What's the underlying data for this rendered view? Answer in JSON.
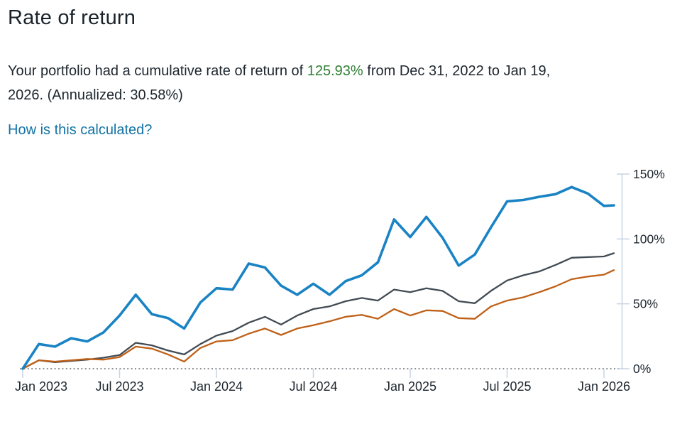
{
  "page": {
    "title": "Rate of return",
    "summary": {
      "before": "Your portfolio had a cumulative rate of return of ",
      "highlight": "125.93%",
      "after": " from Dec 31, 2022 to Jan 19, 2026. (Annualized: 30.58%)"
    },
    "annualized_return": "30.58%",
    "cumulative_return": "125.93%",
    "date_range": {
      "start": "Dec 31, 2022",
      "end": "Jan 19, 2026"
    },
    "link": "How is this calculated?"
  },
  "colors": {
    "portfolio_line": "#1a83c4",
    "comparison_gray": "#424b54",
    "comparison_orange": "#bf6017",
    "highlight_green": "#2f7e33",
    "link_blue": "#1373a5",
    "axis": "#c7d4e2",
    "zero_line": "#8d9298",
    "text": "#1d262e"
  },
  "chart_data": {
    "type": "line",
    "title": "",
    "legend": "none",
    "grid": "off",
    "zero_baseline_dotted": true,
    "x_axis": {
      "tick_labels": [
        "Jan 2023",
        "Jul 2023",
        "Jan 2024",
        "Jul 2024",
        "Jan 2025",
        "Jul 2025",
        "Jan 2026"
      ]
    },
    "y_axis": {
      "side": "right",
      "unit": "%",
      "range_pct": [
        0,
        150
      ],
      "ticks_pct": [
        0,
        50,
        100,
        150
      ],
      "tick_labels": [
        "0%",
        "50%",
        "100%",
        "150%"
      ]
    },
    "x_months": [
      "2022-12-31",
      "2023-01",
      "2023-02",
      "2023-03",
      "2023-04",
      "2023-05",
      "2023-06",
      "2023-07",
      "2023-08",
      "2023-09",
      "2023-10",
      "2023-11",
      "2023-12",
      "2024-01",
      "2024-02",
      "2024-03",
      "2024-04",
      "2024-05",
      "2024-06",
      "2024-07",
      "2024-08",
      "2024-09",
      "2024-10",
      "2024-11",
      "2024-12",
      "2025-01",
      "2025-02",
      "2025-03",
      "2025-04",
      "2025-05",
      "2025-06",
      "2025-07",
      "2025-08",
      "2025-09",
      "2025-10",
      "2025-11",
      "2025-12",
      "2026-01-19"
    ],
    "series": [
      {
        "id": "portfolio",
        "label_visible": false,
        "color_key": "portfolio_line",
        "values_pct": [
          0,
          19,
          17,
          23.5,
          21,
          28,
          41,
          57,
          42,
          39,
          31,
          51,
          62,
          61,
          81,
          78,
          64,
          57,
          65.5,
          57,
          67.5,
          72,
          82,
          115,
          101.5,
          117,
          101,
          79.5,
          88,
          109,
          129,
          130,
          132.5,
          134.5,
          140,
          135,
          125.5,
          125.93
        ]
      },
      {
        "id": "comparison-gray",
        "label_visible": false,
        "color_key": "comparison_gray",
        "values_pct": [
          0,
          6.5,
          5,
          6,
          7,
          8.5,
          10.5,
          20,
          18,
          14,
          11,
          19,
          25.5,
          29,
          35.5,
          40,
          34,
          41,
          46,
          48,
          52,
          54.5,
          52.5,
          61,
          59,
          62,
          60,
          52,
          50.5,
          60,
          68,
          72,
          75,
          80,
          85.5,
          86,
          86.5,
          89
        ]
      },
      {
        "id": "comparison-orange",
        "label_visible": false,
        "color_key": "comparison_orange",
        "values_pct": [
          0,
          6.5,
          5.5,
          6.5,
          7.5,
          7,
          9,
          17,
          15.5,
          11,
          5.5,
          16,
          21,
          22,
          27,
          31,
          26,
          31,
          33.5,
          36.5,
          40,
          41.5,
          38.5,
          46,
          41,
          45,
          44.5,
          39,
          38.5,
          48,
          52.5,
          55,
          59,
          63.5,
          69,
          71,
          72.5,
          76
        ]
      }
    ]
  }
}
